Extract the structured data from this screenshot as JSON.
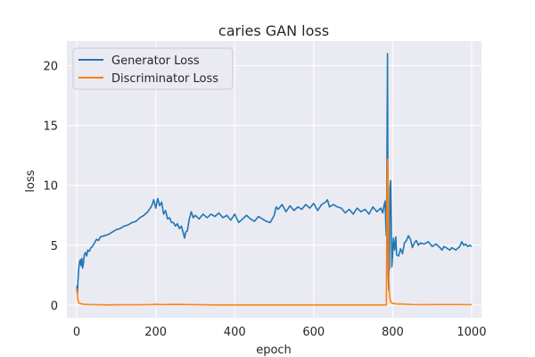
{
  "chart_data": {
    "type": "line",
    "title": "caries GAN loss",
    "xlabel": "epoch",
    "ylabel": "loss",
    "xlim": [
      -25,
      1025
    ],
    "ylim": [
      -1.05,
      22.05
    ],
    "xticks": [
      0,
      200,
      400,
      600,
      800,
      1000
    ],
    "yticks": [
      0,
      5,
      10,
      15,
      20
    ],
    "grid": true,
    "legend_position": "top-left",
    "background": "#eaeaf2",
    "series": [
      {
        "name": "Generator Loss",
        "color": "#1f77b4",
        "points": [
          [
            0,
            1.2
          ],
          [
            1,
            1.6
          ],
          [
            2,
            1.0
          ],
          [
            3,
            2.0
          ],
          [
            5,
            3.0
          ],
          [
            7,
            3.6
          ],
          [
            9,
            3.8
          ],
          [
            11,
            3.3
          ],
          [
            13,
            3.9
          ],
          [
            15,
            3.1
          ],
          [
            17,
            3.5
          ],
          [
            19,
            4.2
          ],
          [
            22,
            4.4
          ],
          [
            25,
            4.1
          ],
          [
            28,
            4.6
          ],
          [
            32,
            4.5
          ],
          [
            36,
            4.8
          ],
          [
            40,
            4.9
          ],
          [
            45,
            5.2
          ],
          [
            50,
            5.5
          ],
          [
            55,
            5.4
          ],
          [
            60,
            5.7
          ],
          [
            70,
            5.8
          ],
          [
            80,
            5.9
          ],
          [
            90,
            6.1
          ],
          [
            100,
            6.3
          ],
          [
            110,
            6.4
          ],
          [
            120,
            6.6
          ],
          [
            130,
            6.7
          ],
          [
            140,
            6.9
          ],
          [
            150,
            7.0
          ],
          [
            160,
            7.3
          ],
          [
            170,
            7.5
          ],
          [
            180,
            7.8
          ],
          [
            190,
            8.3
          ],
          [
            195,
            8.8
          ],
          [
            200,
            8.1
          ],
          [
            205,
            8.9
          ],
          [
            210,
            8.3
          ],
          [
            215,
            8.6
          ],
          [
            220,
            7.6
          ],
          [
            225,
            7.9
          ],
          [
            230,
            7.2
          ],
          [
            235,
            7.3
          ],
          [
            240,
            6.9
          ],
          [
            245,
            6.9
          ],
          [
            250,
            6.6
          ],
          [
            255,
            6.8
          ],
          [
            260,
            6.4
          ],
          [
            265,
            6.6
          ],
          [
            270,
            6.0
          ],
          [
            273,
            5.6
          ],
          [
            276,
            6.1
          ],
          [
            280,
            6.2
          ],
          [
            285,
            7.2
          ],
          [
            290,
            7.8
          ],
          [
            295,
            7.3
          ],
          [
            300,
            7.5
          ],
          [
            310,
            7.2
          ],
          [
            320,
            7.6
          ],
          [
            330,
            7.3
          ],
          [
            340,
            7.6
          ],
          [
            350,
            7.4
          ],
          [
            360,
            7.7
          ],
          [
            370,
            7.3
          ],
          [
            380,
            7.5
          ],
          [
            390,
            7.1
          ],
          [
            400,
            7.6
          ],
          [
            410,
            6.9
          ],
          [
            420,
            7.2
          ],
          [
            430,
            7.5
          ],
          [
            440,
            7.2
          ],
          [
            450,
            7.0
          ],
          [
            460,
            7.4
          ],
          [
            470,
            7.2
          ],
          [
            480,
            7.0
          ],
          [
            490,
            6.9
          ],
          [
            500,
            7.5
          ],
          [
            505,
            8.2
          ],
          [
            510,
            8.0
          ],
          [
            520,
            8.4
          ],
          [
            530,
            7.8
          ],
          [
            540,
            8.3
          ],
          [
            550,
            7.9
          ],
          [
            560,
            8.2
          ],
          [
            570,
            8.0
          ],
          [
            580,
            8.4
          ],
          [
            590,
            8.1
          ],
          [
            600,
            8.5
          ],
          [
            610,
            7.9
          ],
          [
            620,
            8.4
          ],
          [
            630,
            8.6
          ],
          [
            635,
            8.8
          ],
          [
            640,
            8.2
          ],
          [
            650,
            8.4
          ],
          [
            660,
            8.2
          ],
          [
            670,
            8.1
          ],
          [
            680,
            7.7
          ],
          [
            690,
            8.0
          ],
          [
            700,
            7.6
          ],
          [
            710,
            8.1
          ],
          [
            720,
            7.8
          ],
          [
            730,
            8.0
          ],
          [
            740,
            7.6
          ],
          [
            750,
            8.2
          ],
          [
            760,
            7.8
          ],
          [
            770,
            8.1
          ],
          [
            775,
            7.7
          ],
          [
            778,
            8.3
          ],
          [
            781,
            8.7
          ],
          [
            783,
            6.3
          ],
          [
            784,
            5.8
          ],
          [
            785,
            8.5
          ],
          [
            787,
            21.0
          ],
          [
            788,
            9.5
          ],
          [
            789,
            2.5
          ],
          [
            790,
            1.3
          ],
          [
            791,
            4.0
          ],
          [
            792,
            3.0
          ],
          [
            793,
            9.8
          ],
          [
            795,
            10.4
          ],
          [
            797,
            6.0
          ],
          [
            798,
            3.2
          ],
          [
            800,
            4.3
          ],
          [
            802,
            5.6
          ],
          [
            805,
            4.6
          ],
          [
            808,
            5.7
          ],
          [
            810,
            4.2
          ],
          [
            815,
            4.1
          ],
          [
            820,
            4.7
          ],
          [
            825,
            4.3
          ],
          [
            830,
            5.2
          ],
          [
            835,
            5.4
          ],
          [
            840,
            5.8
          ],
          [
            845,
            5.5
          ],
          [
            850,
            4.8
          ],
          [
            855,
            5.2
          ],
          [
            860,
            5.4
          ],
          [
            865,
            5.0
          ],
          [
            870,
            5.2
          ],
          [
            880,
            5.1
          ],
          [
            890,
            5.3
          ],
          [
            900,
            4.9
          ],
          [
            910,
            5.1
          ],
          [
            920,
            4.8
          ],
          [
            925,
            4.6
          ],
          [
            930,
            4.9
          ],
          [
            940,
            4.7
          ],
          [
            945,
            4.6
          ],
          [
            950,
            4.8
          ],
          [
            960,
            4.6
          ],
          [
            970,
            4.9
          ],
          [
            975,
            5.3
          ],
          [
            980,
            5.0
          ],
          [
            985,
            5.1
          ],
          [
            990,
            4.9
          ],
          [
            995,
            5.0
          ],
          [
            1000,
            4.9
          ]
        ]
      },
      {
        "name": "Discriminator Loss",
        "color": "#ff7f0e",
        "points": [
          [
            0,
            1.4
          ],
          [
            1,
            1.1
          ],
          [
            2,
            0.8
          ],
          [
            3,
            0.4
          ],
          [
            5,
            0.2
          ],
          [
            8,
            0.15
          ],
          [
            12,
            0.1
          ],
          [
            20,
            0.06
          ],
          [
            40,
            0.04
          ],
          [
            80,
            0.02
          ],
          [
            120,
            0.03
          ],
          [
            160,
            0.03
          ],
          [
            190,
            0.05
          ],
          [
            200,
            0.07
          ],
          [
            220,
            0.04
          ],
          [
            250,
            0.06
          ],
          [
            300,
            0.04
          ],
          [
            350,
            0.02
          ],
          [
            400,
            0.02
          ],
          [
            500,
            0.02
          ],
          [
            600,
            0.02
          ],
          [
            700,
            0.02
          ],
          [
            780,
            0.02
          ],
          [
            784,
            0.02
          ],
          [
            786,
            10.0
          ],
          [
            787,
            12.2
          ],
          [
            788,
            11.5
          ],
          [
            789,
            7.0
          ],
          [
            790,
            3.0
          ],
          [
            791,
            1.5
          ],
          [
            792,
            0.8
          ],
          [
            794,
            0.4
          ],
          [
            797,
            0.2
          ],
          [
            800,
            0.15
          ],
          [
            810,
            0.1
          ],
          [
            830,
            0.08
          ],
          [
            850,
            0.05
          ],
          [
            880,
            0.04
          ],
          [
            920,
            0.05
          ],
          [
            960,
            0.05
          ],
          [
            1000,
            0.04
          ]
        ]
      }
    ]
  }
}
